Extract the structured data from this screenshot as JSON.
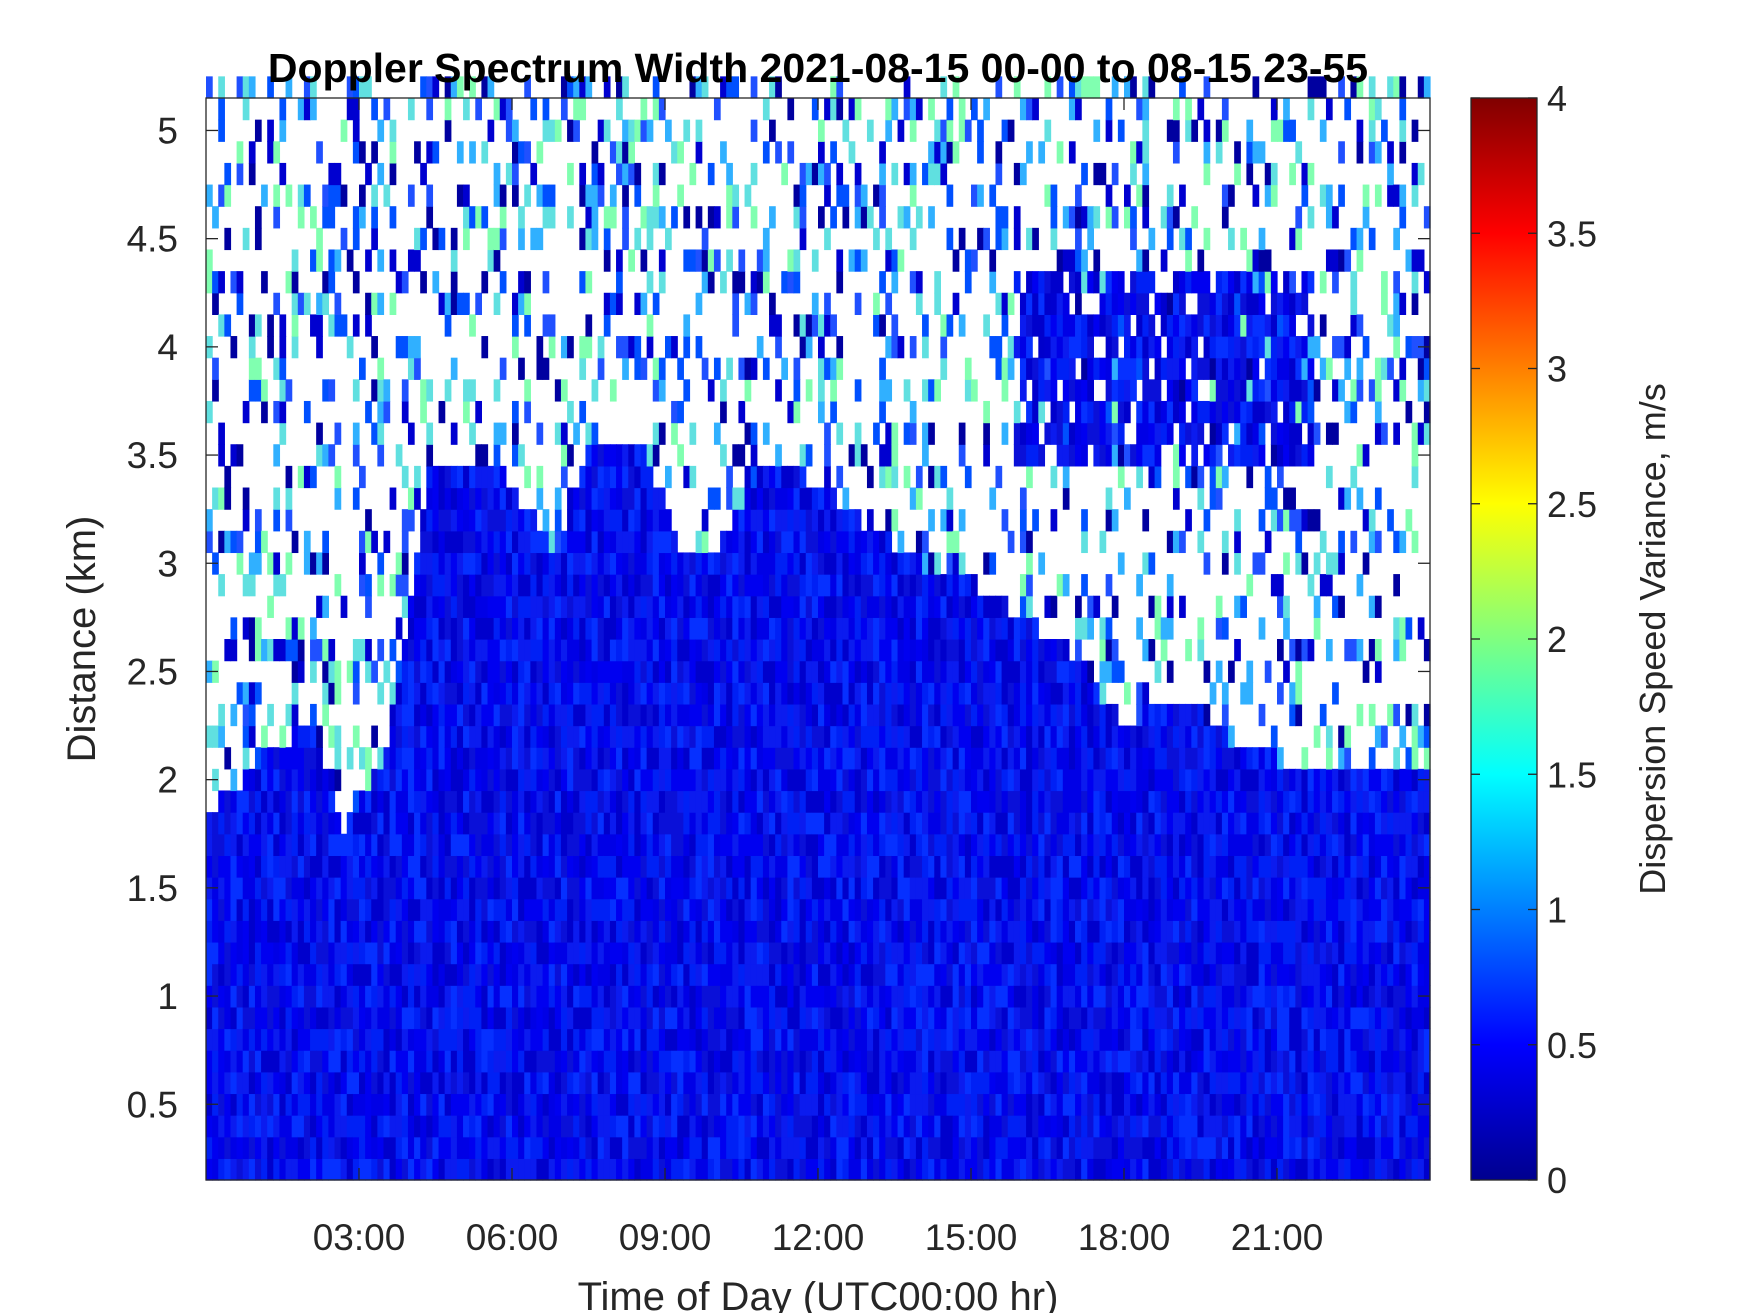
{
  "chart_data": {
    "type": "heatmap",
    "title": "Doppler Spectrum Width 2021-08-15 00-00 to 08-15 23-55",
    "xlabel": "Time of Day (UTC00:00 hr)",
    "ylabel": "Distance (km)",
    "x_ticks": [
      {
        "value": 3,
        "label": "03:00"
      },
      {
        "value": 6,
        "label": "06:00"
      },
      {
        "value": 9,
        "label": "09:00"
      },
      {
        "value": 12,
        "label": "12:00"
      },
      {
        "value": 15,
        "label": "15:00"
      },
      {
        "value": 18,
        "label": "18:00"
      },
      {
        "value": 21,
        "label": "21:00"
      }
    ],
    "y_ticks": [
      {
        "value": 0.5,
        "label": "0.5"
      },
      {
        "value": 1,
        "label": "1"
      },
      {
        "value": 1.5,
        "label": "1.5"
      },
      {
        "value": 2,
        "label": "2"
      },
      {
        "value": 2.5,
        "label": "2.5"
      },
      {
        "value": 3,
        "label": "3"
      },
      {
        "value": 3.5,
        "label": "3.5"
      },
      {
        "value": 4,
        "label": "4"
      },
      {
        "value": 4.5,
        "label": "4.5"
      },
      {
        "value": 5,
        "label": "5"
      }
    ],
    "xlim": [
      0,
      24
    ],
    "ylim": [
      0.15,
      5.15
    ],
    "colorbar": {
      "label": "Dispersion Speed Variance, m/s",
      "clim": [
        0,
        4
      ],
      "ticks": [
        {
          "value": 0,
          "label": "0"
        },
        {
          "value": 0.5,
          "label": "0.5"
        },
        {
          "value": 1,
          "label": "1"
        },
        {
          "value": 1.5,
          "label": "1.5"
        },
        {
          "value": 2,
          "label": "2"
        },
        {
          "value": 2.5,
          "label": "2.5"
        },
        {
          "value": 3,
          "label": "3"
        },
        {
          "value": 3.5,
          "label": "3.5"
        },
        {
          "value": 4,
          "label": "4"
        }
      ],
      "colormap": "jet"
    },
    "grid": false,
    "signal_top_km_by_hour": [
      {
        "hour": 0.0,
        "top_km": 1.8
      },
      {
        "hour": 0.6,
        "top_km": 1.95
      },
      {
        "hour": 1.2,
        "top_km": 2.1
      },
      {
        "hour": 2.0,
        "top_km": 2.2
      },
      {
        "hour": 2.6,
        "top_km": 1.7
      },
      {
        "hour": 3.5,
        "top_km": 2.1
      },
      {
        "hour": 4.3,
        "top_km": 3.35
      },
      {
        "hour": 5.5,
        "top_km": 3.45
      },
      {
        "hour": 6.8,
        "top_km": 3.0
      },
      {
        "hour": 7.5,
        "top_km": 3.55
      },
      {
        "hour": 8.5,
        "top_km": 3.55
      },
      {
        "hour": 9.2,
        "top_km": 3.0
      },
      {
        "hour": 10.0,
        "top_km": 3.05
      },
      {
        "hour": 11.0,
        "top_km": 3.45
      },
      {
        "hour": 12.0,
        "top_km": 3.3
      },
      {
        "hour": 13.0,
        "top_km": 3.1
      },
      {
        "hour": 14.0,
        "top_km": 2.95
      },
      {
        "hour": 15.0,
        "top_km": 2.85
      },
      {
        "hour": 16.0,
        "top_km": 2.7
      },
      {
        "hour": 17.0,
        "top_km": 2.5
      },
      {
        "hour": 18.0,
        "top_km": 2.2
      },
      {
        "hour": 19.0,
        "top_km": 2.35
      },
      {
        "hour": 20.0,
        "top_km": 2.15
      },
      {
        "hour": 21.0,
        "top_km": 2.05
      },
      {
        "hour": 22.0,
        "top_km": 2.05
      },
      {
        "hour": 24.0,
        "top_km": 2.0
      }
    ],
    "upper_layer_cloud": {
      "hours": [
        15.8,
        21.7
      ],
      "km": [
        3.4,
        4.35
      ]
    }
  }
}
